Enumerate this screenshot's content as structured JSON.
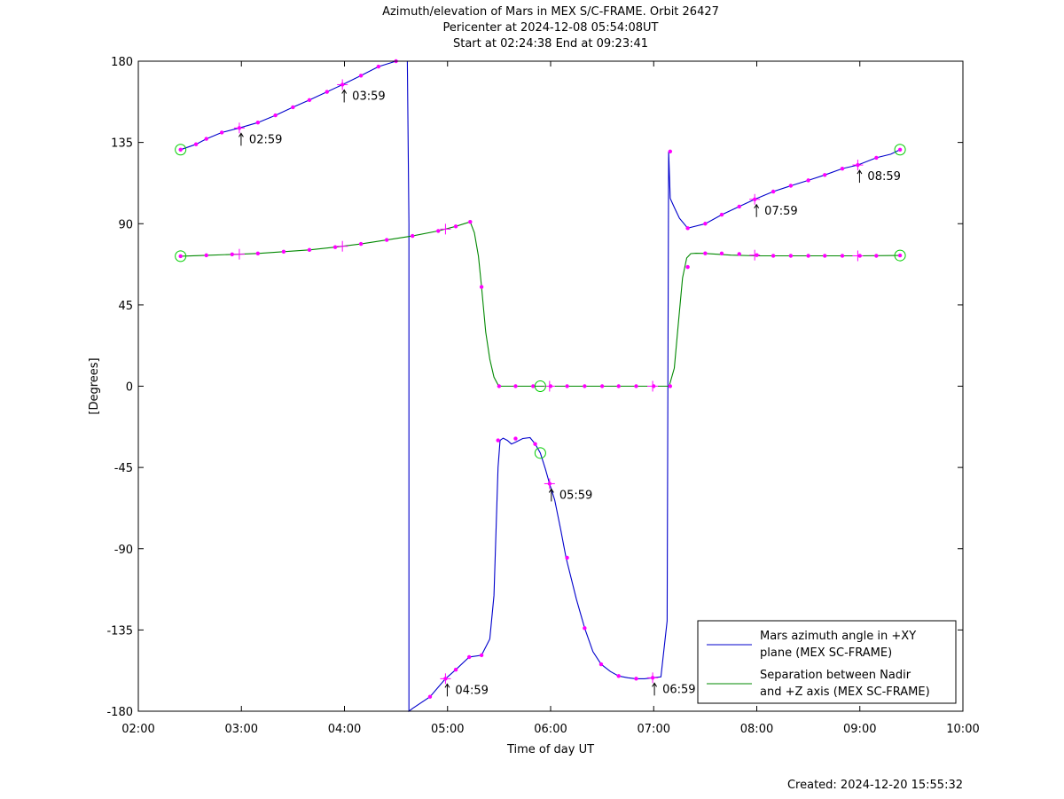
{
  "chart_data": {
    "type": "line",
    "title_lines": [
      "Azimuth/elevation of Mars in MEX S/C-FRAME.  Orbit 26427",
      "Pericenter at 2024-12-08 05:54:08UT",
      "Start at 02:24:38 End at 09:23:41"
    ],
    "xlabel": "Time of day UT",
    "ylabel": "[Degrees]",
    "xlim": [
      2.0,
      10.0
    ],
    "ylim": [
      -180,
      180
    ],
    "x_ticks": [
      2,
      3,
      4,
      5,
      6,
      7,
      8,
      9,
      10
    ],
    "x_tick_labels": [
      "02:00",
      "03:00",
      "04:00",
      "05:00",
      "06:00",
      "07:00",
      "08:00",
      "09:00",
      "10:00"
    ],
    "y_ticks": [
      180,
      135,
      90,
      45,
      0,
      -45,
      -90,
      -135,
      -180
    ],
    "y_tick_labels": [
      "180",
      "135",
      "90",
      "45",
      "0",
      "-45",
      "-90",
      "-135",
      "-180"
    ],
    "grid": false,
    "legend_position": "bottom-right",
    "series": [
      {
        "name": "Mars azimuth angle in +XY plane (MEX SC-FRAME)",
        "legend_lines": [
          "Mars azimuth angle in +XY",
          "plane (MEX SC-FRAME)"
        ],
        "color": "#0000cc",
        "x": [
          2.41,
          2.56,
          2.66,
          2.81,
          2.98,
          3.16,
          3.33,
          3.5,
          3.66,
          3.83,
          3.98,
          4.16,
          4.33,
          4.5,
          4.61,
          4.625,
          4.625,
          4.66,
          4.83,
          4.98,
          5.08,
          5.21,
          5.33,
          5.41,
          5.45,
          5.49,
          5.51,
          5.54,
          5.58,
          5.62,
          5.66,
          5.73,
          5.8,
          5.85,
          5.9,
          5.95,
          5.99,
          6.04,
          6.1,
          6.15,
          6.25,
          6.33,
          6.41,
          6.49,
          6.58,
          6.66,
          6.75,
          6.83,
          6.91,
          6.99,
          7.07,
          7.13,
          7.145,
          7.16,
          7.2,
          7.25,
          7.33,
          7.5,
          7.66,
          7.83,
          7.98,
          8.16,
          8.33,
          8.5,
          8.66,
          8.83,
          8.98,
          9.16,
          9.3,
          9.39
        ],
        "y": [
          131,
          134,
          137,
          140.5,
          143,
          146,
          150,
          154.5,
          158.5,
          163,
          167,
          172,
          177,
          180,
          180,
          90,
          -180,
          -178.5,
          -172,
          -162,
          -157,
          -150,
          -149,
          -140,
          -116,
          -45,
          -30,
          -28.8,
          -30,
          -32,
          -31,
          -29,
          -28.5,
          -32,
          -37,
          -46,
          -54,
          -63,
          -80,
          -95,
          -118,
          -134,
          -147,
          -154,
          -158,
          -160.5,
          -161.5,
          -162,
          -162,
          -161.5,
          -161,
          -130,
          130,
          104,
          99,
          93,
          87.5,
          90,
          95,
          99.5,
          103.5,
          107.8,
          111,
          114,
          117,
          120.5,
          122.5,
          126.5,
          128.5,
          131
        ]
      },
      {
        "name": "Separation between Nadir and +Z axis (MEX SC-FRAME)",
        "legend_lines": [
          "Separation between Nadir",
          "and +Z axis (MEX SC-FRAME)"
        ],
        "color": "#008800",
        "x": [
          2.41,
          2.66,
          2.91,
          3.16,
          3.41,
          3.66,
          3.91,
          4.16,
          4.41,
          4.66,
          4.91,
          5.08,
          5.16,
          5.22,
          5.26,
          5.3,
          5.33,
          5.37,
          5.41,
          5.45,
          5.49,
          5.52,
          5.58,
          5.9,
          6.0,
          6.5,
          7.0,
          7.15,
          7.2,
          7.24,
          7.28,
          7.32,
          7.36,
          7.41,
          7.5,
          7.75,
          8.0,
          8.5,
          9.0,
          9.39
        ],
        "y": [
          72,
          72.5,
          73,
          73.5,
          74.5,
          75.5,
          77,
          78.8,
          81,
          83.2,
          86,
          88.5,
          90,
          91,
          85,
          72,
          55,
          30,
          15,
          5,
          0.8,
          0,
          0,
          0,
          0,
          0,
          0,
          0,
          10,
          35,
          60,
          71,
          73.4,
          73.6,
          73.5,
          72.6,
          72.2,
          72.2,
          72.2,
          72.4
        ]
      }
    ],
    "markers_azimuth": {
      "color": "#ff00ff",
      "x": [
        2.41,
        2.56,
        2.66,
        2.81,
        2.98,
        3.16,
        3.33,
        3.5,
        3.66,
        3.83,
        3.98,
        4.16,
        4.33,
        4.5,
        4.83,
        4.98,
        5.08,
        5.21,
        5.33,
        5.49,
        5.66,
        5.85,
        5.99,
        6.16,
        6.33,
        6.49,
        6.66,
        6.83,
        6.99,
        7.16,
        7.33,
        7.5,
        7.66,
        7.83,
        7.98,
        8.16,
        8.33,
        8.5,
        8.66,
        8.83,
        8.98,
        9.16,
        9.39
      ],
      "y": [
        131,
        134,
        137,
        140.5,
        143,
        146,
        150,
        154.5,
        158.5,
        163,
        167,
        172,
        177,
        180,
        -172,
        -162,
        -157,
        -150,
        -149,
        -30,
        -29,
        -32,
        -54,
        -95,
        -134,
        -154,
        -160.5,
        -162,
        -161.5,
        130,
        87.5,
        90,
        95,
        99.5,
        103.5,
        107.8,
        111,
        114,
        117,
        120.5,
        122.5,
        126.5,
        131
      ]
    },
    "markers_separation": {
      "color": "#ff00ff",
      "x": [
        2.41,
        2.66,
        2.91,
        3.16,
        3.41,
        3.66,
        3.91,
        4.16,
        4.41,
        4.66,
        4.91,
        5.08,
        5.22,
        5.33,
        5.5,
        5.66,
        5.83,
        6.0,
        6.16,
        6.33,
        6.5,
        6.66,
        6.83,
        7.0,
        7.16,
        7.33,
        7.5,
        7.66,
        7.83,
        8.0,
        8.16,
        8.33,
        8.5,
        8.66,
        8.83,
        9.0,
        9.16,
        9.39
      ],
      "y": [
        72,
        72.5,
        73,
        73.5,
        74.5,
        75.5,
        77,
        78.8,
        81,
        83.2,
        86,
        88.5,
        91,
        55,
        0,
        0,
        0,
        0,
        0,
        0,
        0,
        0,
        0,
        0,
        0,
        66,
        73.6,
        73.5,
        73.2,
        72.6,
        72.2,
        72.2,
        72.2,
        72.2,
        72.2,
        72.2,
        72.2,
        72.4
      ]
    },
    "hour_marks": [
      {
        "series": 0,
        "x": 2.98,
        "y": 143,
        "label": "02:59"
      },
      {
        "series": 0,
        "x": 3.98,
        "y": 167,
        "label": "03:59"
      },
      {
        "series": 0,
        "x": 4.98,
        "y": -162,
        "label": "04:59"
      },
      {
        "series": 0,
        "x": 5.99,
        "y": -54,
        "label": "05:59"
      },
      {
        "series": 0,
        "x": 6.99,
        "y": -161.5,
        "label": "06:59"
      },
      {
        "series": 0,
        "x": 7.98,
        "y": 103.5,
        "label": "07:59"
      },
      {
        "series": 0,
        "x": 8.98,
        "y": 122.5,
        "label": "08:59"
      },
      {
        "series": 1,
        "x": 2.98,
        "y": 73.1,
        "label": ""
      },
      {
        "series": 1,
        "x": 3.98,
        "y": 77.5,
        "label": ""
      },
      {
        "series": 1,
        "x": 4.98,
        "y": 87,
        "label": ""
      },
      {
        "series": 1,
        "x": 5.99,
        "y": 0,
        "label": ""
      },
      {
        "series": 1,
        "x": 6.99,
        "y": 0,
        "label": ""
      },
      {
        "series": 1,
        "x": 7.98,
        "y": 72.6,
        "label": ""
      },
      {
        "series": 1,
        "x": 8.98,
        "y": 72.2,
        "label": ""
      }
    ],
    "circle_marks": [
      {
        "x": 2.41,
        "y": 131
      },
      {
        "x": 2.41,
        "y": 72
      },
      {
        "x": 9.39,
        "y": 131
      },
      {
        "x": 9.39,
        "y": 72.4
      },
      {
        "x": 5.9,
        "y": 0
      },
      {
        "x": 5.9,
        "y": -37
      }
    ],
    "circle_color": "#00cc00",
    "footer": "Created: 2024-12-20 15:55:32"
  }
}
